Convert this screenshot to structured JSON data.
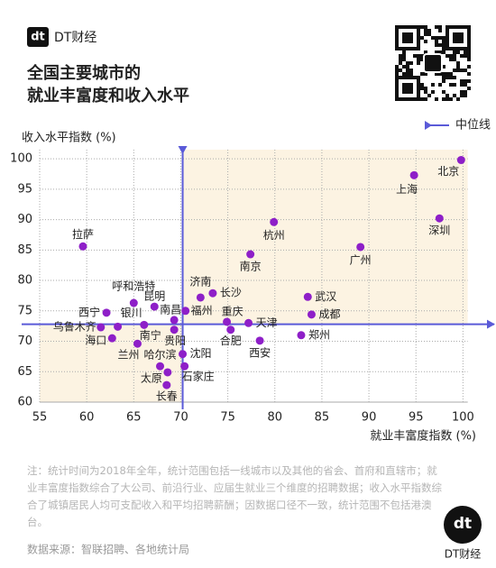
{
  "brand": "DT财经",
  "logo_text": "dt",
  "chart_data": {
    "type": "scatter",
    "title": [
      "全国主要城市的",
      "就业丰富度和收入水平"
    ],
    "y_label": "收入水平指数 (%)",
    "x_label": "就业丰富度指数 (%)",
    "median_label": "中位线",
    "median_x": 70.2,
    "median_y": 72.8,
    "median_color": "#5a5ad8",
    "color": "#8e1fc8",
    "quadrant_color": "#fcf3e2",
    "grid": true,
    "xlim": [
      55,
      100.5
    ],
    "ylim": [
      60,
      101.5
    ],
    "xticks": [
      55,
      60,
      65,
      70,
      75,
      80,
      85,
      90,
      95,
      100
    ],
    "yticks": [
      60,
      65,
      70,
      75,
      80,
      85,
      90,
      95,
      100
    ],
    "labels": [
      "北京",
      "上海",
      "深圳",
      "杭州",
      "广州",
      "南京",
      "拉萨",
      "武汉",
      "成都",
      "郑州",
      "济南",
      "长沙",
      "福州",
      "重庆",
      "天津",
      "合肥",
      "西安",
      "呼和浩特",
      "昆明",
      "南昌",
      "西宁",
      "银川",
      "乌鲁木齐",
      "南宁",
      "海口",
      "兰州",
      "贵阳",
      "哈尔滨",
      "沈阳",
      "太原",
      "石家庄",
      "长春"
    ],
    "x": [
      99.8,
      94.8,
      97.5,
      79.9,
      89.1,
      77.4,
      59.6,
      83.5,
      83.9,
      82.8,
      72.1,
      73.4,
      70.5,
      74.9,
      77.2,
      75.3,
      78.4,
      65.0,
      67.2,
      69.3,
      62.1,
      63.3,
      61.5,
      66.1,
      62.7,
      65.4,
      69.3,
      67.8,
      70.2,
      68.6,
      70.4,
      68.5
    ],
    "values": [
      99.8,
      97.3,
      90.2,
      89.6,
      85.5,
      84.3,
      85.6,
      77.3,
      74.4,
      71.0,
      77.2,
      77.9,
      75.0,
      73.2,
      73.0,
      71.9,
      70.1,
      76.3,
      75.7,
      73.5,
      74.7,
      72.4,
      72.3,
      72.7,
      70.5,
      69.6,
      71.9,
      65.9,
      67.9,
      64.9,
      65.9,
      62.8
    ]
  },
  "note": "注：统计时间为2018年全年，统计范围包括一线城市以及其他的省会、首府和直辖市；就业丰富度指数综合了大公司、前沿行业、应届生就业三个维度的招聘数据；收入水平指数综合了城镇居民人均可支配收入和平均招聘薪酬；因数据口径不一致，统计范围不包括港澳台。",
  "source": "数据来源：智联招聘、各地统计局"
}
